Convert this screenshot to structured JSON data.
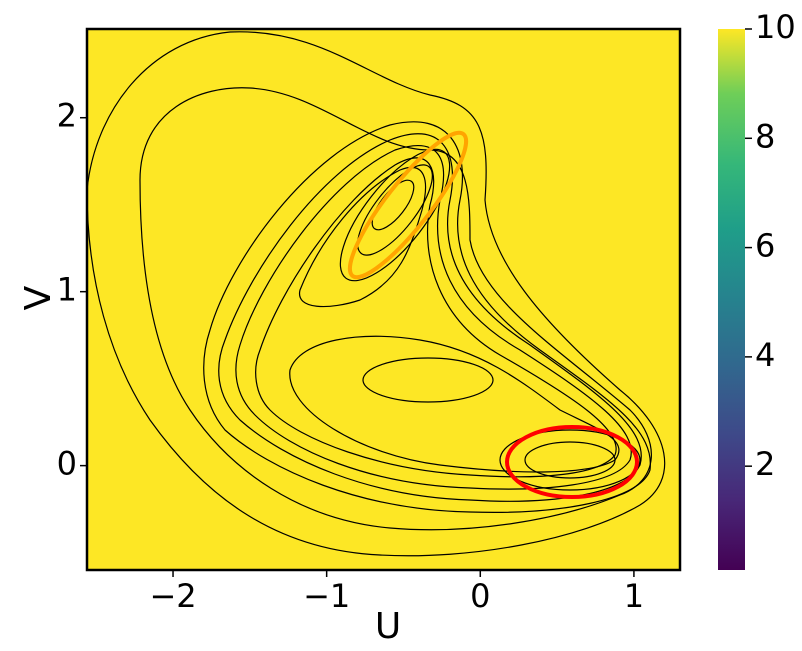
{
  "chart_data": {
    "type": "contour",
    "x_label": "U",
    "y_label": "V",
    "xlim": [
      -2.56,
      1.3
    ],
    "xticks": [
      {
        "value": -2,
        "label": "−2"
      },
      {
        "value": -1,
        "label": "−1"
      },
      0,
      1
    ],
    "ylim": [
      -0.6,
      2.51
    ],
    "yticks": [
      0,
      1,
      2
    ],
    "colorbar": {
      "lim": [
        0.1,
        10
      ],
      "ticks": [
        2,
        4,
        6,
        8,
        10
      ]
    }
  }
}
